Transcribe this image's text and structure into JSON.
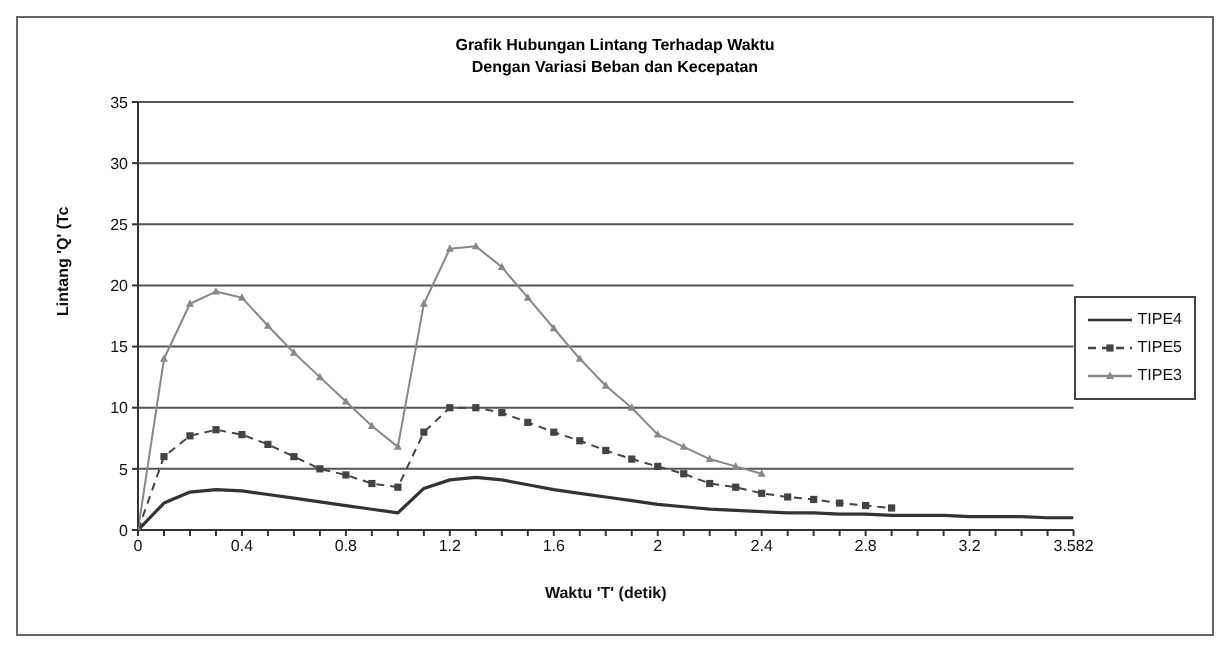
{
  "chart_data": {
    "type": "line",
    "title": "Grafik Hubungan Lintang Terhadap Waktu",
    "subtitle": "Dengan Variasi Beban dan Kecepatan",
    "xlabel": "Waktu 'T' (detik)",
    "ylabel": "Lintang 'Q' (Tc",
    "categories": [
      "0",
      null,
      null,
      null,
      "0.4",
      null,
      null,
      null,
      "0.8",
      null,
      null,
      null,
      "1.2",
      null,
      null,
      null,
      "1.6",
      null,
      null,
      null,
      "2",
      null,
      null,
      null,
      "2.4",
      null,
      null,
      null,
      "2.8",
      null,
      null,
      null,
      "3.2",
      null,
      null,
      null,
      "3.582"
    ],
    "series": [
      {
        "name": "TIPE4",
        "color": "#333333",
        "marker": "none",
        "line_style": "solid",
        "values": [
          0,
          2.2,
          3.1,
          3.3,
          3.2,
          2.9,
          2.6,
          2.3,
          2,
          1.7,
          1.4,
          3.4,
          4.1,
          4.3,
          4.1,
          3.7,
          3.3,
          3,
          2.7,
          2.4,
          2.1,
          1.9,
          1.7,
          1.6,
          1.5,
          1.4,
          1.4,
          1.3,
          1.3,
          1.2,
          1.2,
          1.2,
          1.1,
          1.1,
          1.1,
          1,
          1
        ]
      },
      {
        "name": "TIPE5",
        "color": "#444444",
        "marker": "square",
        "line_style": "dashed",
        "values": [
          0,
          6,
          7.7,
          8.2,
          7.8,
          7,
          6,
          5,
          4.5,
          3.8,
          3.5,
          8,
          10,
          10,
          9.6,
          8.8,
          8,
          7.3,
          6.5,
          5.8,
          5.2,
          4.6,
          3.8,
          3.5,
          3,
          2.7,
          2.5,
          2.2,
          2,
          1.8,
          null,
          null,
          null,
          null,
          null,
          null,
          null
        ]
      },
      {
        "name": "TIPE3",
        "color": "#888888",
        "marker": "triangle",
        "line_style": "solid",
        "values": [
          0,
          14,
          18.5,
          19.5,
          19,
          16.7,
          14.5,
          12.5,
          10.5,
          8.5,
          6.8,
          18.5,
          23,
          23.2,
          21.5,
          19,
          16.5,
          14,
          11.8,
          10,
          7.8,
          6.8,
          5.8,
          5.2,
          4.6,
          null,
          null,
          null,
          null,
          null,
          null,
          null,
          null,
          null,
          null,
          null,
          null
        ]
      }
    ],
    "ylim": [
      0,
      35
    ],
    "yticks": [
      0,
      5,
      10,
      15,
      20,
      25,
      30,
      35
    ],
    "grid": "y",
    "legend": "right"
  }
}
